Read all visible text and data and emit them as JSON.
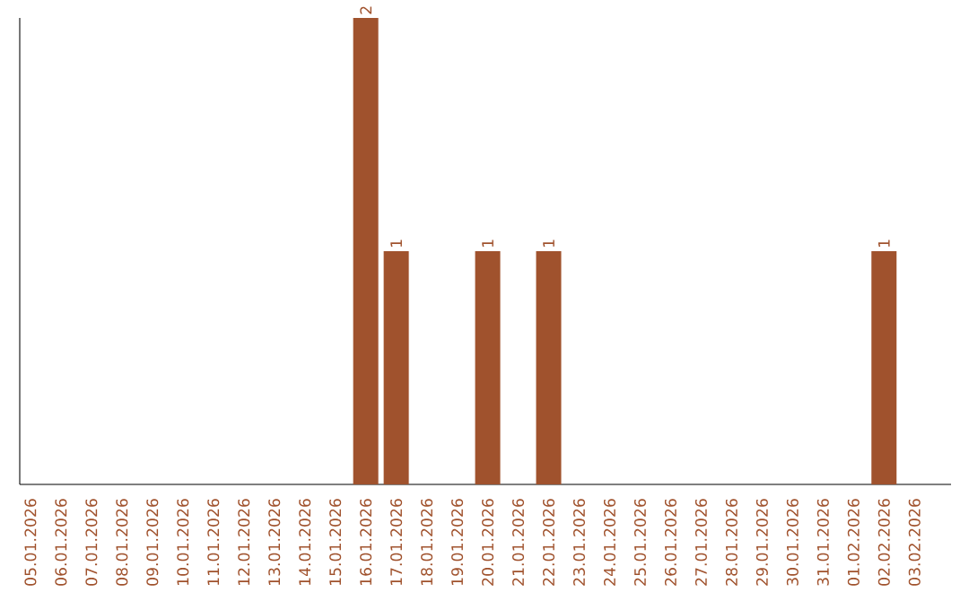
{
  "chart_data": {
    "type": "bar",
    "categories": [
      "05.01.2026",
      "06.01.2026",
      "07.01.2026",
      "08.01.2026",
      "09.01.2026",
      "10.01.2026",
      "11.01.2026",
      "12.01.2026",
      "13.01.2026",
      "14.01.2026",
      "15.01.2026",
      "16.01.2026",
      "17.01.2026",
      "18.01.2026",
      "19.01.2026",
      "20.01.2026",
      "21.01.2026",
      "22.01.2026",
      "23.01.2026",
      "24.01.2026",
      "25.01.2026",
      "26.01.2026",
      "27.01.2026",
      "28.01.2026",
      "29.01.2026",
      "30.01.2026",
      "31.01.2026",
      "01.02.2026",
      "02.02.2026",
      "03.02.2026"
    ],
    "values": [
      0,
      0,
      0,
      0,
      0,
      0,
      0,
      0,
      0,
      0,
      0,
      2,
      1,
      0,
      0,
      1,
      0,
      1,
      0,
      0,
      0,
      0,
      0,
      0,
      0,
      0,
      0,
      0,
      1,
      0
    ],
    "value_labels": [
      null,
      null,
      null,
      null,
      null,
      null,
      null,
      null,
      null,
      null,
      null,
      "2",
      "1",
      null,
      null,
      "1",
      null,
      "1",
      null,
      null,
      null,
      null,
      null,
      null,
      null,
      null,
      null,
      null,
      "1",
      null
    ],
    "color": "#a0522d",
    "tick_labels": "x"
  }
}
